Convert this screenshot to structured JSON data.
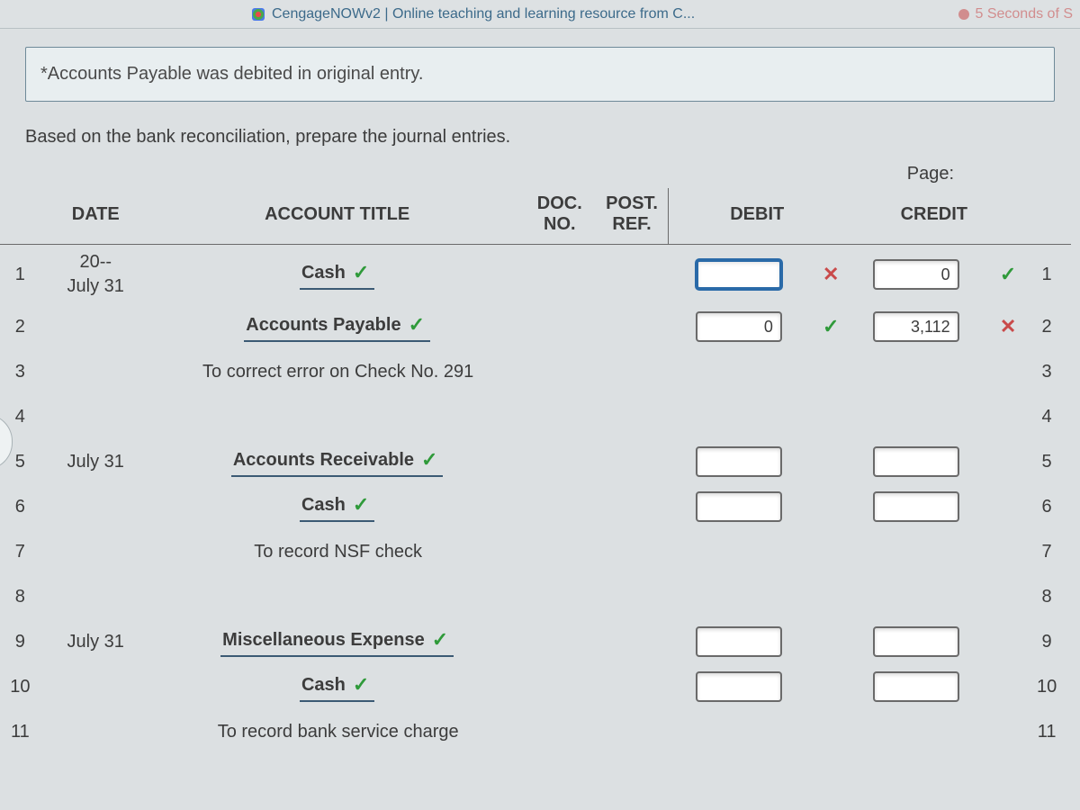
{
  "topbar": {
    "title": "CengageNOWv2 | Online teaching and learning resource from C...",
    "timer": "5 Seconds of S"
  },
  "note": "*Accounts Payable was debited in original entry.",
  "instruction": "Based on the bank reconciliation, prepare the journal entries.",
  "page_label": "Page:",
  "headers": {
    "date": "DATE",
    "account": "ACCOUNT TITLE",
    "doc_no": "DOC. NO.",
    "post_ref": "POST. REF.",
    "doc": "DOC.",
    "no": "NO.",
    "post": "POST.",
    "ref": "REF.",
    "debit": "DEBIT",
    "credit": "CREDIT"
  },
  "marks": {
    "ok": "✓",
    "bad": "✕"
  },
  "rows": [
    {
      "ln": "1",
      "date_top": "20--",
      "date_bot": "July 31",
      "acct": "Cash",
      "acct_mark": "ok",
      "type": "entry",
      "dr": "",
      "dr_mark": "bad",
      "dr_active": true,
      "cr": "0",
      "cr_mark": "ok",
      "rn": "1"
    },
    {
      "ln": "2",
      "acct": "Accounts Payable",
      "acct_mark": "ok",
      "type": "entry",
      "dr": "0",
      "dr_mark": "ok",
      "cr": "3,112",
      "cr_mark": "bad",
      "rn": "2"
    },
    {
      "ln": "3",
      "acct": "To correct error on Check No. 291",
      "type": "desc",
      "rn": "3"
    },
    {
      "ln": "4",
      "type": "blank",
      "rn": "4"
    },
    {
      "ln": "5",
      "date_bot": "July 31",
      "acct": "Accounts Receivable",
      "acct_mark": "ok",
      "type": "entry",
      "dr": "",
      "cr": "",
      "rn": "5"
    },
    {
      "ln": "6",
      "acct": "Cash",
      "acct_mark": "ok",
      "type": "entry",
      "dr": "",
      "cr": "",
      "rn": "6"
    },
    {
      "ln": "7",
      "acct": "To record NSF check",
      "type": "desc",
      "rn": "7"
    },
    {
      "ln": "8",
      "type": "blank",
      "rn": "8"
    },
    {
      "ln": "9",
      "date_bot": "July 31",
      "acct": "Miscellaneous Expense",
      "acct_mark": "ok",
      "type": "entry",
      "dr": "",
      "cr": "",
      "rn": "9"
    },
    {
      "ln": "10",
      "acct": "Cash",
      "acct_mark": "ok",
      "type": "entry",
      "dr": "",
      "cr": "",
      "rn": "10"
    },
    {
      "ln": "11",
      "acct": "To record bank service charge",
      "type": "desc",
      "rn": "11"
    }
  ],
  "colors": {
    "bg": "#dce0e2",
    "link": "#3c6a8a",
    "ok": "#2f9a3a",
    "bad": "#c94a4a",
    "input_border": "#6a6a6a",
    "input_active": "#2a6aa8",
    "rule": "#3b5a74"
  }
}
